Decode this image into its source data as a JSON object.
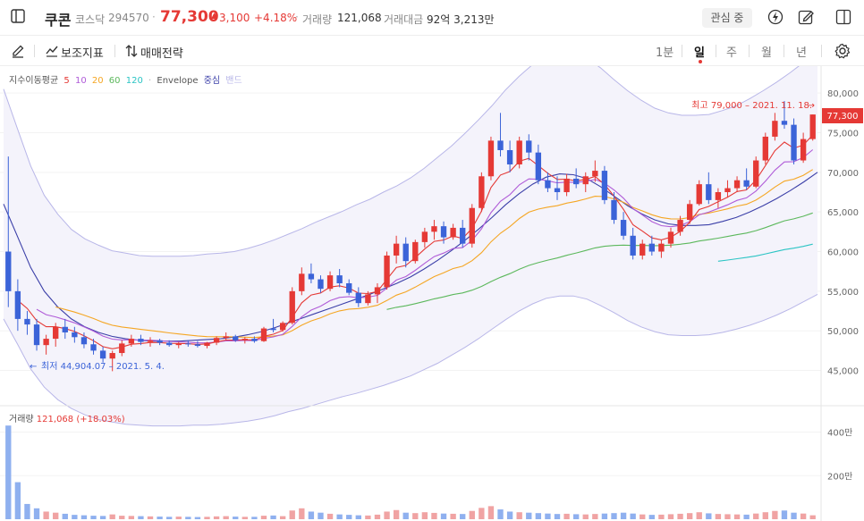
{
  "header": {
    "stock_name": "쿠콘",
    "market": "코스닥",
    "code": "294570",
    "price": "77,300",
    "change": "3,100",
    "change_pct": "+4.18%",
    "volume_label": "거래량",
    "volume": "121,068",
    "amount_label": "거래대금",
    "amount": "92억 3,213만",
    "favorite_label": "관심 중"
  },
  "toolbar": {
    "indicators_label": "보조지표",
    "strategy_label": "매매전략",
    "periods": [
      "1분",
      "일",
      "주",
      "월",
      "년"
    ],
    "active_period": "일"
  },
  "legend": {
    "title": "지수이동평균",
    "ma": [
      {
        "label": "5",
        "color": "#e53935"
      },
      {
        "label": "10",
        "color": "#b05cd8"
      },
      {
        "label": "20",
        "color": "#f5a623"
      },
      {
        "label": "60",
        "color": "#5cb85c"
      },
      {
        "label": "120",
        "color": "#2bc4c4"
      }
    ],
    "envelope": "Envelope",
    "envelope_center": "중심",
    "envelope_band": "밴드"
  },
  "colors": {
    "up": "#e53935",
    "down": "#3b63d8",
    "ma5": "#e53935",
    "ma10": "#b05cd8",
    "ma20": "#f5a623",
    "ma60": "#5cb85c",
    "ma120": "#2bc4c4",
    "envelope_center": "#3b3fa8",
    "envelope_band": "#b8b6e8"
  },
  "annotations": {
    "high": "최고 79,000 – 2021. 11. 18.",
    "low": "최저 44,904.07 – 2021. 5. 4."
  },
  "volume_legend": {
    "label": "거래량",
    "value": "121,068 (+18.03%)"
  },
  "chart_data": {
    "type": "candlestick",
    "price_axis": {
      "ticks": [
        "80,000",
        "75,000",
        "70,000",
        "65,000",
        "60,000",
        "55,000",
        "50,000",
        "45,000"
      ],
      "range": [
        41000,
        82500
      ]
    },
    "volume_axis": {
      "ticks": [
        "400만",
        "200만"
      ],
      "range": [
        0,
        4800000
      ]
    },
    "current_price_label": "77,300",
    "envelope": {
      "center": [
        66000,
        62000,
        58000,
        55000,
        53000,
        51500,
        50500,
        49800,
        49300,
        49000,
        48800,
        48700,
        48700,
        48700,
        48800,
        48900,
        49000,
        49200,
        49500,
        49900,
        50400,
        51000,
        51600,
        52200,
        52800,
        53400,
        54000,
        54600,
        55300,
        56000,
        56800,
        57800,
        58900,
        60100,
        61400,
        62800,
        64300,
        65900,
        67300,
        68500,
        69400,
        69800,
        69700,
        69200,
        68200,
        67000,
        65800,
        64800,
        64000,
        63500,
        63300,
        63300,
        63400,
        63800,
        64300,
        65000,
        65800,
        66700,
        67700,
        68800,
        70000
      ],
      "upper": [
        80500,
        75600,
        70800,
        67100,
        64700,
        62800,
        61600,
        60800,
        60100,
        59800,
        59500,
        59400,
        59400,
        59400,
        59500,
        59700,
        59800,
        60000,
        60400,
        60900,
        61500,
        62200,
        62900,
        63700,
        64400,
        65100,
        65900,
        66600,
        67500,
        68300,
        69300,
        70500,
        71900,
        73300,
        74900,
        76600,
        78400,
        80400,
        82100,
        83600,
        84700,
        85200,
        85000,
        84400,
        83200,
        81700,
        80300,
        79100,
        78100,
        77500,
        77200,
        77200,
        77300,
        77800,
        78400,
        79300,
        80300,
        81400,
        82600,
        83900,
        85400
      ],
      "lower": [
        51500,
        48400,
        45200,
        42900,
        41300,
        40200,
        39400,
        38800,
        38500,
        38200,
        38100,
        38000,
        38000,
        38000,
        38100,
        38100,
        38200,
        38400,
        38600,
        38900,
        39300,
        39800,
        40200,
        40700,
        41200,
        41700,
        42100,
        42600,
        43100,
        43700,
        44300,
        45100,
        45900,
        46900,
        47900,
        49000,
        50200,
        51400,
        52500,
        53400,
        54100,
        54400,
        54400,
        54000,
        53200,
        52300,
        51300,
        50500,
        49900,
        49500,
        49400,
        49400,
        49500,
        49800,
        50200,
        50700,
        51300,
        52000,
        52800,
        53700,
        54600
      ]
    },
    "ohlc": [
      [
        60000,
        72000,
        53000,
        55000
      ],
      [
        55000,
        56500,
        50000,
        51500
      ],
      [
        51500,
        52500,
        49500,
        50800
      ],
      [
        50800,
        51500,
        47500,
        48200
      ],
      [
        48200,
        49500,
        47000,
        49000
      ],
      [
        49000,
        51000,
        48000,
        50500
      ],
      [
        50500,
        51500,
        49000,
        49800
      ],
      [
        49800,
        50500,
        48500,
        49200
      ],
      [
        49200,
        49800,
        47800,
        48300
      ],
      [
        48300,
        49000,
        47000,
        47500
      ],
      [
        47500,
        48000,
        46000,
        46500
      ],
      [
        46500,
        47500,
        44904,
        47200
      ],
      [
        47200,
        48800,
        46800,
        48400
      ],
      [
        48400,
        49500,
        48000,
        49000
      ],
      [
        49000,
        49500,
        48200,
        48600
      ],
      [
        48600,
        49200,
        48000,
        48800
      ],
      [
        48800,
        49000,
        48200,
        48500
      ],
      [
        48500,
        48800,
        48000,
        48200
      ],
      [
        48200,
        48600,
        47800,
        48400
      ],
      [
        48400,
        48800,
        48000,
        48300
      ],
      [
        48300,
        48700,
        47900,
        48100
      ],
      [
        48100,
        48600,
        47800,
        48500
      ],
      [
        48500,
        49300,
        48200,
        49100
      ],
      [
        49100,
        49800,
        48800,
        49300
      ],
      [
        49300,
        49500,
        48600,
        48800
      ],
      [
        48800,
        49200,
        48400,
        49000
      ],
      [
        49000,
        49300,
        48500,
        48700
      ],
      [
        48700,
        50500,
        48600,
        50300
      ],
      [
        50300,
        51500,
        49800,
        50100
      ],
      [
        50100,
        51200,
        49900,
        51000
      ],
      [
        51000,
        55500,
        50800,
        55000
      ],
      [
        55000,
        58000,
        54500,
        57200
      ],
      [
        57200,
        58500,
        56000,
        56500
      ],
      [
        56500,
        57000,
        54800,
        55300
      ],
      [
        55300,
        57500,
        55000,
        57000
      ],
      [
        57000,
        57800,
        55500,
        56000
      ],
      [
        56000,
        56500,
        54500,
        54800
      ],
      [
        54800,
        55500,
        53000,
        53500
      ],
      [
        53500,
        55000,
        53200,
        54600
      ],
      [
        54600,
        56000,
        53500,
        55500
      ],
      [
        55500,
        60000,
        55200,
        59500
      ],
      [
        59500,
        62000,
        58500,
        61000
      ],
      [
        61000,
        61800,
        58000,
        58800
      ],
      [
        58800,
        61500,
        58500,
        61200
      ],
      [
        61200,
        63000,
        60500,
        62500
      ],
      [
        62500,
        64000,
        61500,
        63200
      ],
      [
        63200,
        63800,
        61000,
        61800
      ],
      [
        61800,
        63500,
        61500,
        63000
      ],
      [
        63000,
        64000,
        60500,
        61000
      ],
      [
        61000,
        66000,
        60500,
        65500
      ],
      [
        65500,
        70000,
        65000,
        69500
      ],
      [
        69500,
        74500,
        69000,
        74000
      ],
      [
        74000,
        77500,
        72000,
        72800
      ],
      [
        72800,
        74000,
        70000,
        71000
      ],
      [
        71000,
        74500,
        70500,
        74000
      ],
      [
        74000,
        74800,
        71500,
        72500
      ],
      [
        72500,
        73500,
        68500,
        69000
      ],
      [
        69000,
        70000,
        67500,
        68000
      ],
      [
        68000,
        69500,
        66500,
        67500
      ],
      [
        67500,
        69800,
        67000,
        69200
      ],
      [
        69200,
        70500,
        68000,
        68500
      ],
      [
        68500,
        70000,
        67500,
        69500
      ],
      [
        69500,
        71500,
        68800,
        70200
      ],
      [
        70200,
        70800,
        66000,
        66500
      ],
      [
        66500,
        67500,
        63500,
        64000
      ],
      [
        64000,
        65000,
        61500,
        62000
      ],
      [
        62000,
        63000,
        59000,
        59500
      ],
      [
        59500,
        61500,
        59000,
        61000
      ],
      [
        61000,
        62000,
        59500,
        60000
      ],
      [
        60000,
        61500,
        59200,
        61000
      ],
      [
        61000,
        63000,
        60500,
        62500
      ],
      [
        62500,
        64500,
        62000,
        64000
      ],
      [
        64000,
        66500,
        63500,
        66000
      ],
      [
        66000,
        69000,
        65800,
        68500
      ],
      [
        68500,
        70000,
        66000,
        66500
      ],
      [
        66500,
        68000,
        65500,
        67500
      ],
      [
        67500,
        69000,
        66800,
        68000
      ],
      [
        68000,
        69500,
        67500,
        69000
      ],
      [
        69000,
        70500,
        67800,
        68200
      ],
      [
        68200,
        72000,
        68000,
        71500
      ],
      [
        71500,
        75000,
        71000,
        74500
      ],
      [
        74500,
        77500,
        74000,
        76500
      ],
      [
        76500,
        79000,
        75500,
        76000
      ],
      [
        76000,
        76800,
        71000,
        71500
      ],
      [
        71500,
        75000,
        71200,
        74200
      ],
      [
        74200,
        77300,
        74000,
        77300
      ]
    ],
    "volume": [
      4300000,
      1700000,
      700000,
      500000,
      350000,
      300000,
      250000,
      200000,
      180000,
      160000,
      150000,
      220000,
      160000,
      150000,
      140000,
      130000,
      120000,
      110000,
      120000,
      110000,
      100000,
      110000,
      130000,
      140000,
      120000,
      110000,
      110000,
      160000,
      170000,
      140000,
      400000,
      500000,
      350000,
      300000,
      250000,
      220000,
      200000,
      180000,
      170000,
      210000,
      350000,
      420000,
      300000,
      280000,
      320000,
      290000,
      260000,
      250000,
      240000,
      380000,
      520000,
      600000,
      450000,
      350000,
      320000,
      300000,
      280000,
      260000,
      240000,
      250000,
      230000,
      220000,
      240000,
      260000,
      280000,
      300000,
      260000,
      220000,
      200000,
      210000,
      230000,
      250000,
      280000,
      320000,
      270000,
      240000,
      230000,
      220000,
      210000,
      260000,
      320000,
      380000,
      400000,
      300000,
      260000,
      180000
    ]
  }
}
